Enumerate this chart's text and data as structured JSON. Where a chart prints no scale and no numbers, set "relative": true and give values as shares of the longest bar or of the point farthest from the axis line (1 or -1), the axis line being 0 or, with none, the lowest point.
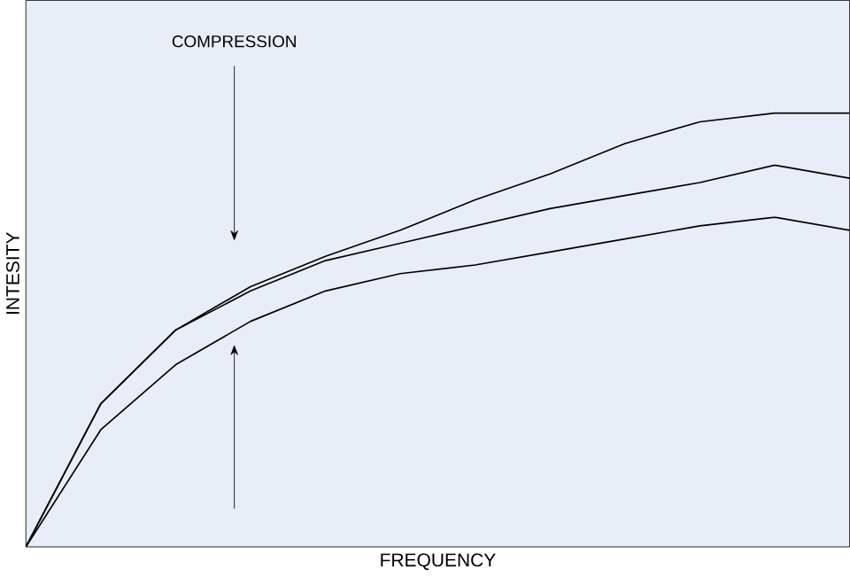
{
  "chart_data": {
    "type": "line",
    "relative": true,
    "xlabel": "FREQUENCY",
    "ylabel": "INTESITY",
    "annotations": [
      "COMPRESSION"
    ],
    "marker": "none",
    "line_style": "solid",
    "categories": [
      null,
      null,
      null,
      null,
      null,
      null,
      null,
      null,
      null,
      null,
      null,
      null
    ],
    "series": [
      {
        "color": "#000000",
        "values": [
          0,
          0.33,
          0.5,
          0.6,
          0.67,
          0.73,
          0.8,
          0.86,
          0.93,
          0.98,
          1.0,
          1.0
        ]
      },
      {
        "color": "#000000",
        "values": [
          0,
          0.33,
          0.5,
          0.59,
          0.66,
          0.7,
          0.74,
          0.78,
          0.81,
          0.84,
          0.88,
          0.85
        ]
      },
      {
        "color": "#000000",
        "values": [
          0,
          0.27,
          0.42,
          0.52,
          0.59,
          0.63,
          0.65,
          0.68,
          0.71,
          0.74,
          0.76,
          0.73
        ]
      }
    ]
  }
}
